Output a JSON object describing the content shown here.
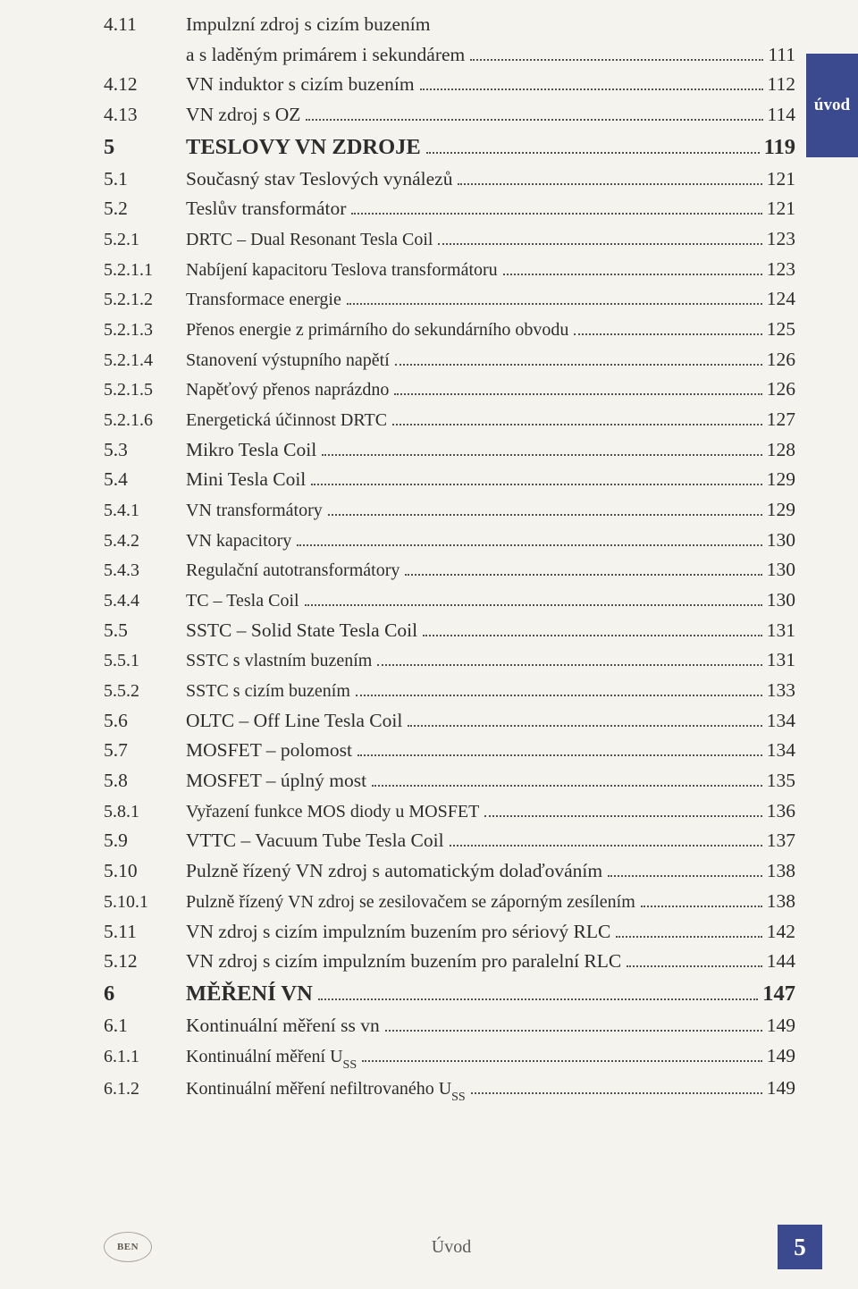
{
  "sidebarTab": "úvod",
  "footer": {
    "logo": "BEN",
    "label": "Úvod",
    "pageNumber": "5"
  },
  "toc": [
    {
      "level": "h2",
      "num": "4.11",
      "text": "Impulzní zdroj s cizím buzením",
      "cont": "a s laděným primárem i sekundárem",
      "page": "111"
    },
    {
      "level": "h2",
      "num": "4.12",
      "text": "VN induktor s cizím buzením",
      "page": "112"
    },
    {
      "level": "h2",
      "num": "4.13",
      "text": "VN zdroj s OZ",
      "page": "114"
    },
    {
      "level": "h1",
      "num": "5",
      "text": "TESLOVY VN ZDROJE",
      "page": "119"
    },
    {
      "level": "h2",
      "num": "5.1",
      "text": "Současný stav Teslových vynálezů",
      "page": "121"
    },
    {
      "level": "h2",
      "num": "5.2",
      "text": "Teslův transformátor",
      "page": "121"
    },
    {
      "level": "h3",
      "num": "5.2.1",
      "text": "DRTC – Dual Resonant Tesla Coil",
      "page": "123"
    },
    {
      "level": "h3",
      "num": "5.2.1.1",
      "text": "Nabíjení kapacitoru Teslova transformátoru",
      "page": "123"
    },
    {
      "level": "h3",
      "num": "5.2.1.2",
      "text": "Transformace energie",
      "page": "124"
    },
    {
      "level": "h3",
      "num": "5.2.1.3",
      "text": "Přenos energie z primárního do sekundárního obvodu",
      "page": "125"
    },
    {
      "level": "h3",
      "num": "5.2.1.4",
      "text": "Stanovení výstupního napětí",
      "page": "126"
    },
    {
      "level": "h3",
      "num": "5.2.1.5",
      "text": "Napěťový přenos naprázdno",
      "page": "126"
    },
    {
      "level": "h3",
      "num": "5.2.1.6",
      "text": "Energetická účinnost DRTC",
      "page": "127"
    },
    {
      "level": "h2",
      "num": "5.3",
      "text": "Mikro Tesla Coil",
      "page": "128"
    },
    {
      "level": "h2",
      "num": "5.4",
      "text": "Mini Tesla Coil",
      "page": "129"
    },
    {
      "level": "h3",
      "num": "5.4.1",
      "text": "VN transformátory",
      "page": "129"
    },
    {
      "level": "h3",
      "num": "5.4.2",
      "text": "VN kapacitory",
      "page": "130"
    },
    {
      "level": "h3",
      "num": "5.4.3",
      "text": "Regulační autotransformátory",
      "page": "130"
    },
    {
      "level": "h3",
      "num": "5.4.4",
      "text": "TC – Tesla Coil",
      "page": "130"
    },
    {
      "level": "h2",
      "num": "5.5",
      "text": "SSTC – Solid State Tesla Coil",
      "page": "131"
    },
    {
      "level": "h3",
      "num": "5.5.1",
      "text": "SSTC s vlastním buzením",
      "page": "131"
    },
    {
      "level": "h3",
      "num": "5.5.2",
      "text": "SSTC s cizím buzením",
      "page": "133"
    },
    {
      "level": "h2",
      "num": "5.6",
      "text": "OLTC – Off Line Tesla Coil",
      "page": "134"
    },
    {
      "level": "h2",
      "num": "5.7",
      "text": "MOSFET – polomost",
      "page": "134"
    },
    {
      "level": "h2",
      "num": "5.8",
      "text": "MOSFET – úplný most",
      "page": "135"
    },
    {
      "level": "h3",
      "num": "5.8.1",
      "text": "Vyřazení funkce MOS diody u MOSFET",
      "page": "136"
    },
    {
      "level": "h2",
      "num": "5.9",
      "text": "VTTC – Vacuum Tube Tesla Coil",
      "page": "137"
    },
    {
      "level": "h2",
      "num": "5.10",
      "text": "Pulzně řízený VN zdroj s automatickým dolaďováním",
      "page": "138"
    },
    {
      "level": "h3",
      "num": "5.10.1",
      "text": "Pulzně řízený VN zdroj se zesilovačem se záporným zesílením",
      "page": "138"
    },
    {
      "level": "h2",
      "num": "5.11",
      "text": "VN zdroj s cizím impulzním buzením pro sériový RLC",
      "page": "142"
    },
    {
      "level": "h2",
      "num": "5.12",
      "text": "VN zdroj s cizím impulzním buzením pro paralelní RLC",
      "page": "144"
    },
    {
      "level": "h1",
      "num": "6",
      "text": "MĚŘENÍ VN",
      "page": "147"
    },
    {
      "level": "h2",
      "num": "6.1",
      "text": "Kontinuální měření ss vn",
      "page": "149"
    },
    {
      "level": "h3",
      "num": "6.1.1",
      "text": "Kontinuální měření U__SS__",
      "page": "149"
    },
    {
      "level": "h3",
      "num": "6.1.2",
      "text": "Kontinuální měření nefiltrovaného U__SS__",
      "page": "149"
    }
  ]
}
